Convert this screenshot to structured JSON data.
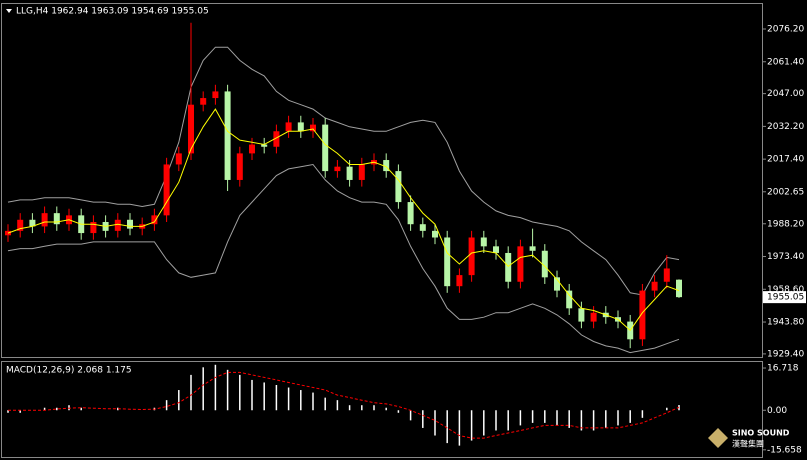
{
  "chart_data": [
    {
      "type": "candlestick",
      "title": "LLG,H4  1962.94 1963.09 1954.69 1955.05",
      "up_color": "#ff0000",
      "down_color": "#b8f5a8",
      "open": [
        1983,
        1985,
        1990,
        1987,
        1993,
        1988,
        1992,
        1984,
        1989,
        1985,
        1990,
        1986,
        1988,
        1992,
        2015,
        2020,
        2042,
        2045,
        2048,
        2008,
        2020,
        2024,
        2023,
        2030,
        2034,
        2030,
        2033,
        2012,
        2014,
        2008,
        2015,
        2017,
        2012,
        1998,
        1988,
        1985,
        1982,
        1960,
        1965,
        1982,
        1978,
        1975,
        1962,
        1978,
        1976,
        1964,
        1958,
        1950,
        1944,
        1948,
        1946,
        1944,
        1936,
        1958,
        1962,
        1962.94
      ],
      "high": [
        1988,
        1993,
        1993,
        1996,
        1996,
        1995,
        1995,
        1992,
        1992,
        1993,
        1993,
        1991,
        1995,
        2018,
        2023,
        2079,
        2048,
        2051,
        2051,
        2023,
        2027,
        2027,
        2033,
        2037,
        2037,
        2036,
        2036,
        2017,
        2017,
        2018,
        2020,
        2020,
        2015,
        2001,
        1991,
        1988,
        1985,
        1968,
        1985,
        1985,
        1981,
        1978,
        1981,
        1986,
        1979,
        1967,
        1961,
        1953,
        1951,
        1951,
        1949,
        1947,
        1961,
        1965,
        1974,
        1963.09
      ],
      "low": [
        1980,
        1982,
        1984,
        1984,
        1985,
        1985,
        1981,
        1981,
        1982,
        1982,
        1983,
        1983,
        1985,
        1989,
        2012,
        2017,
        2039,
        2042,
        2003,
        2005,
        2017,
        2020,
        2020,
        2027,
        2027,
        2027,
        2009,
        2009,
        2005,
        2005,
        2012,
        2009,
        1995,
        1985,
        1982,
        1979,
        1957,
        1957,
        1962,
        1975,
        1972,
        1959,
        1959,
        1973,
        1961,
        1955,
        1947,
        1941,
        1941,
        1943,
        1941,
        1932,
        1933,
        1955,
        1959,
        1954.69
      ],
      "close": [
        1985,
        1990,
        1987,
        1993,
        1988,
        1992,
        1984,
        1989,
        1985,
        1990,
        1986,
        1988,
        1992,
        2015,
        2020,
        2042,
        2045,
        2048,
        2008,
        2020,
        2024,
        2023,
        2030,
        2034,
        2030,
        2033,
        2012,
        2014,
        2008,
        2015,
        2017,
        2012,
        1998,
        1988,
        1985,
        1982,
        1960,
        1965,
        1982,
        1978,
        1975,
        1962,
        1978,
        1976,
        1964,
        1958,
        1950,
        1944,
        1948,
        1946,
        1944,
        1936,
        1958,
        1962,
        1968,
        1955.05
      ],
      "upper_band": {
        "color": "#a0a0a0",
        "values": [
          1998,
          1999,
          1999,
          2000,
          2000,
          2000,
          1999,
          1998,
          1998,
          1997,
          1997,
          1996,
          1997,
          2010,
          2025,
          2050,
          2062,
          2068,
          2068,
          2062,
          2058,
          2055,
          2048,
          2044,
          2042,
          2040,
          2036,
          2034,
          2032,
          2031,
          2030,
          2030,
          2032,
          2034,
          2035,
          2034,
          2025,
          2012,
          2003,
          1998,
          1994,
          1992,
          1991,
          1989,
          1988,
          1987,
          1985,
          1980,
          1976,
          1972,
          1965,
          1957,
          1956,
          1966,
          1973,
          1972
        ]
      },
      "lower_band": {
        "color": "#a0a0a0",
        "values": [
          1976,
          1977,
          1977,
          1978,
          1979,
          1979,
          1979,
          1980,
          1980,
          1980,
          1980,
          1980,
          1980,
          1972,
          1966,
          1964,
          1965,
          1966,
          1980,
          1992,
          1998,
          2004,
          2010,
          2013,
          2014,
          2015,
          2008,
          2003,
          2000,
          1998,
          1998,
          1997,
          1990,
          1978,
          1968,
          1960,
          1950,
          1945,
          1945,
          1946,
          1948,
          1948,
          1950,
          1952,
          1950,
          1947,
          1943,
          1938,
          1935,
          1933,
          1932,
          1930,
          1931,
          1932,
          1934,
          1936
        ]
      },
      "moving_average": {
        "color": "#ffff00",
        "values": [
          1984,
          1986,
          1987,
          1989,
          1989,
          1990,
          1988,
          1988,
          1987,
          1988,
          1987,
          1987,
          1989,
          1998,
          2007,
          2022,
          2032,
          2040,
          2030,
          2026,
          2025,
          2024,
          2027,
          2030,
          2030,
          2031,
          2024,
          2020,
          2015,
          2015,
          2016,
          2014,
          2008,
          2000,
          1993,
          1988,
          1975,
          1970,
          1975,
          1976,
          1975,
          1969,
          1973,
          1974,
          1969,
          1963,
          1956,
          1950,
          1949,
          1947,
          1945,
          1940,
          1948,
          1954,
          1960,
          1958
        ]
      },
      "ylim": [
        1928,
        2087.5
      ],
      "yticks": [
        {
          "value": 2076.2,
          "label": "2076.20"
        },
        {
          "value": 2061.4,
          "label": "2061.40"
        },
        {
          "value": 2047,
          "label": "2047.00"
        },
        {
          "value": 2032.2,
          "label": "2032.20"
        },
        {
          "value": 2017.4,
          "label": "2017.40"
        },
        {
          "value": 2002.65,
          "label": "2002.65"
        },
        {
          "value": 1988.2,
          "label": "1988.20"
        },
        {
          "value": 1973.4,
          "label": "1973.40"
        },
        {
          "value": 1958.6,
          "label": "1958.60"
        },
        {
          "value": 1943.8,
          "label": "1943.80"
        },
        {
          "value": 1929.4,
          "label": "1929.40"
        }
      ],
      "price_marker": {
        "value": 1955.05,
        "label": "1955.05"
      }
    },
    {
      "type": "macd",
      "title": "MACD(12,26,9) 2.068 1.175",
      "histogram": {
        "color": "#ffffff",
        "values": [
          -1,
          -1,
          0,
          1,
          1,
          2,
          1,
          0,
          0,
          1,
          0,
          0,
          1,
          4,
          8,
          14,
          17,
          18,
          16,
          14,
          12,
          11,
          10,
          9,
          8,
          7,
          5,
          4,
          2,
          2,
          2,
          1,
          -1,
          -4,
          -7,
          -10,
          -13,
          -14,
          -12,
          -10,
          -8,
          -8,
          -6,
          -5,
          -5,
          -6,
          -7,
          -8,
          -8,
          -7,
          -6,
          -5,
          -3,
          0,
          1,
          2.068
        ]
      },
      "signal": {
        "color": "#ff0000",
        "values": [
          0,
          0,
          0,
          0,
          0.5,
          0.8,
          1,
          0.8,
          0.6,
          0.6,
          0.4,
          0.3,
          0.4,
          1.5,
          3,
          6,
          10,
          13,
          15,
          15,
          14,
          13,
          12,
          11,
          10,
          9,
          8,
          6,
          5,
          4,
          3,
          2.5,
          1.5,
          0,
          -2,
          -4,
          -7,
          -10,
          -11,
          -11,
          -10,
          -9,
          -8,
          -7,
          -6,
          -6,
          -6,
          -7,
          -7,
          -7,
          -7,
          -6,
          -5,
          -3,
          -1,
          1.175
        ]
      },
      "ylim": [
        -18.5,
        19.1
      ],
      "yticks": [
        16.718,
        {
          "value": 0,
          "label": "0.00"
        },
        -15.658
      ]
    }
  ],
  "logo": {
    "name": "SINO SOUND",
    "subtitle": "漢聲集團"
  }
}
